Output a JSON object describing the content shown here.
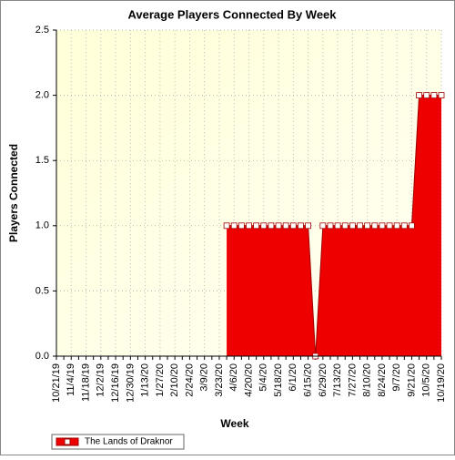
{
  "chart_data": {
    "type": "area",
    "title": "Average Players Connected By Week",
    "x_label": "Week",
    "y_label": "Players Connected",
    "categories": [
      "10/21/19",
      null,
      "11/4/19",
      null,
      "11/18/19",
      null,
      "12/2/19",
      null,
      "12/16/19",
      null,
      "12/30/19",
      null,
      "1/13/20",
      null,
      "1/27/20",
      null,
      "2/10/20",
      null,
      "2/24/20",
      null,
      "3/9/20",
      null,
      "3/23/20",
      null,
      "4/6/20",
      null,
      "4/20/20",
      null,
      "5/4/20",
      null,
      "5/18/20",
      null,
      "6/1/20",
      null,
      "6/15/20",
      null,
      "6/29/20",
      null,
      "7/13/20",
      null,
      "7/27/20",
      null,
      "8/10/20",
      null,
      "8/24/20",
      null,
      "9/7/20",
      null,
      "9/21/20",
      null,
      "10/5/20",
      null,
      "10/19/20"
    ],
    "series": [
      {
        "name": "The Lands of Draknor",
        "color": "#ee0000",
        "values": [
          null,
          null,
          null,
          null,
          null,
          null,
          null,
          null,
          null,
          null,
          null,
          null,
          null,
          null,
          null,
          null,
          null,
          null,
          null,
          null,
          null,
          null,
          null,
          1,
          1,
          1,
          1,
          1,
          1,
          1,
          1,
          1,
          1,
          1,
          1,
          0,
          1,
          1,
          1,
          1,
          1,
          1,
          1,
          1,
          1,
          1,
          1,
          1,
          1,
          2,
          2,
          2,
          2
        ]
      }
    ],
    "ylim": [
      0,
      2.5
    ],
    "yticks": [
      {
        "value": 0,
        "label": "0.0"
      },
      {
        "value": 0.5,
        "label": "0.5"
      },
      {
        "value": 1,
        "label": "1.0"
      },
      {
        "value": 1.5,
        "label": "1.5"
      },
      {
        "value": 2,
        "label": "2.0"
      },
      {
        "value": 2.5,
        "label": "2.5"
      }
    ],
    "grid": true,
    "legend": "bottom-left"
  }
}
